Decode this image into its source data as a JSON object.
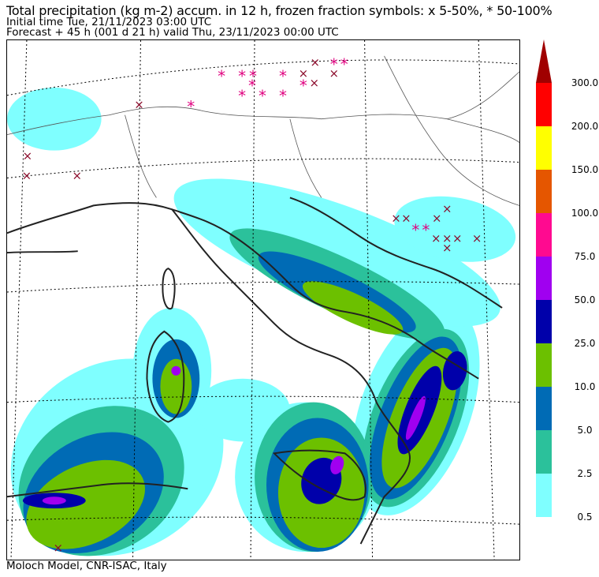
{
  "header": {
    "title": "Total precipitation (kg m-2) accum. in 12 h, frozen fraction symbols: x 5-50%, * 50-100%",
    "initial_time": "Initial time  Tue, 21/11/2023  03:00 UTC",
    "forecast": "Forecast  +  45 h  (001 d 21 h)  valid Thu, 23/11/2023 00:00 UTC"
  },
  "footer": {
    "credit": "Moloch Model, CNR-ISAC, Italy"
  },
  "colorbar": {
    "extend": "max",
    "arrow_color": "#a00000",
    "levels": [
      {
        "label": "0.5",
        "color": "#7fffff"
      },
      {
        "label": "2.5",
        "color": "#2bc19b"
      },
      {
        "label": "5.0",
        "color": "#006bb5"
      },
      {
        "label": "10.0",
        "color": "#6cc000"
      },
      {
        "label": "25.0",
        "color": "#0000aa"
      },
      {
        "label": "50.0",
        "color": "#a000f0"
      },
      {
        "label": "75.0",
        "color": "#ff0a90"
      },
      {
        "label": "100.0",
        "color": "#e55600"
      },
      {
        "label": "150.0",
        "color": "#ffff00"
      },
      {
        "label": "200.0",
        "color": "#ff0000"
      },
      {
        "label": "300.0",
        "color": "#a00000"
      }
    ]
  },
  "symbols": {
    "x_color": "#8b0a2a",
    "star_color": "#e0007f"
  }
}
